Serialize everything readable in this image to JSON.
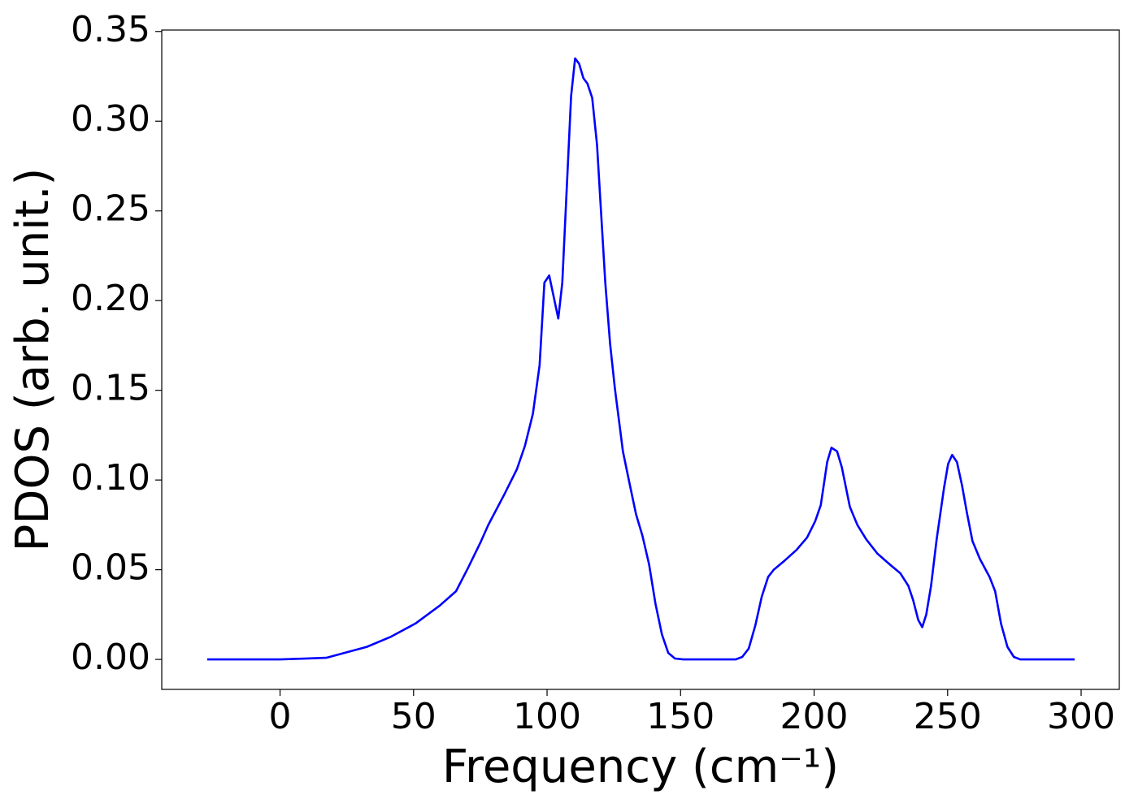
{
  "chart_data": {
    "type": "line",
    "x_label": "Frequency (cm⁻¹)",
    "y_label": "PDOS (arb. unit.)",
    "xlim": [
      -44.3,
      314.3
    ],
    "ylim": [
      -0.0167,
      0.3508
    ],
    "xticks": [
      0,
      50,
      100,
      150,
      200,
      250,
      300
    ],
    "yticks": [
      {
        "value": 0,
        "label": "0.00"
      },
      0.05,
      {
        "value": 0.1,
        "label": "0.10"
      },
      0.15,
      {
        "value": 0.2,
        "label": "0.20"
      },
      0.25,
      {
        "value": 0.3,
        "label": "0.30"
      },
      0.35
    ],
    "grid": false,
    "series": [
      {
        "color": "#0000ff",
        "x": [
          -27.3,
          0,
          17.3,
          32.5,
          41.6,
          50.7,
          59.8,
          65.9,
          70.4,
          75,
          78,
          84,
          88.7,
          91.7,
          94.7,
          97.2,
          99,
          100.8,
          104.2,
          105.7,
          109,
          110.5,
          112,
          113.6,
          115.1,
          116.9,
          118.7,
          121.8,
          123.6,
          125.4,
          128.4,
          130.9,
          133.3,
          135.7,
          138.2,
          140.6,
          143,
          145.4,
          147.9,
          151,
          170.6,
          173.1,
          175.5,
          178,
          180.4,
          182.8,
          184.9,
          188.9,
          193.4,
          197.4,
          200.4,
          202.5,
          204.9,
          206.5,
          208.6,
          210.4,
          213.4,
          216.2,
          219.5,
          223.7,
          228.3,
          232.3,
          235.3,
          237.1,
          239,
          240.5,
          242,
          243.8,
          245.9,
          248.7,
          250.2,
          251.7,
          253.5,
          255.4,
          257.2,
          259.3,
          262.1,
          265.7,
          267.8,
          270,
          272.4,
          274.8,
          277.2,
          297.6
        ],
        "values": [
          0,
          0,
          0.0009,
          0.007,
          0.0127,
          0.02,
          0.03,
          0.038,
          0.051,
          0.065,
          0.075,
          0.092,
          0.106,
          0.119,
          0.137,
          0.164,
          0.21,
          0.214,
          0.19,
          0.21,
          0.314,
          0.335,
          0.332,
          0.324,
          0.321,
          0.313,
          0.287,
          0.21,
          0.176,
          0.151,
          0.116,
          0.098,
          0.081,
          0.069,
          0.053,
          0.031,
          0.014,
          0.0036,
          0.0005,
          0,
          0,
          0.0014,
          0.006,
          0.019,
          0.035,
          0.046,
          0.05,
          0.055,
          0.061,
          0.068,
          0.077,
          0.086,
          0.11,
          0.118,
          0.116,
          0.107,
          0.085,
          0.075,
          0.067,
          0.059,
          0.053,
          0.048,
          0.041,
          0.033,
          0.022,
          0.018,
          0.025,
          0.041,
          0.067,
          0.096,
          0.109,
          0.114,
          0.11,
          0.097,
          0.082,
          0.066,
          0.056,
          0.046,
          0.038,
          0.02,
          0.007,
          0.0014,
          0,
          0
        ]
      }
    ]
  }
}
